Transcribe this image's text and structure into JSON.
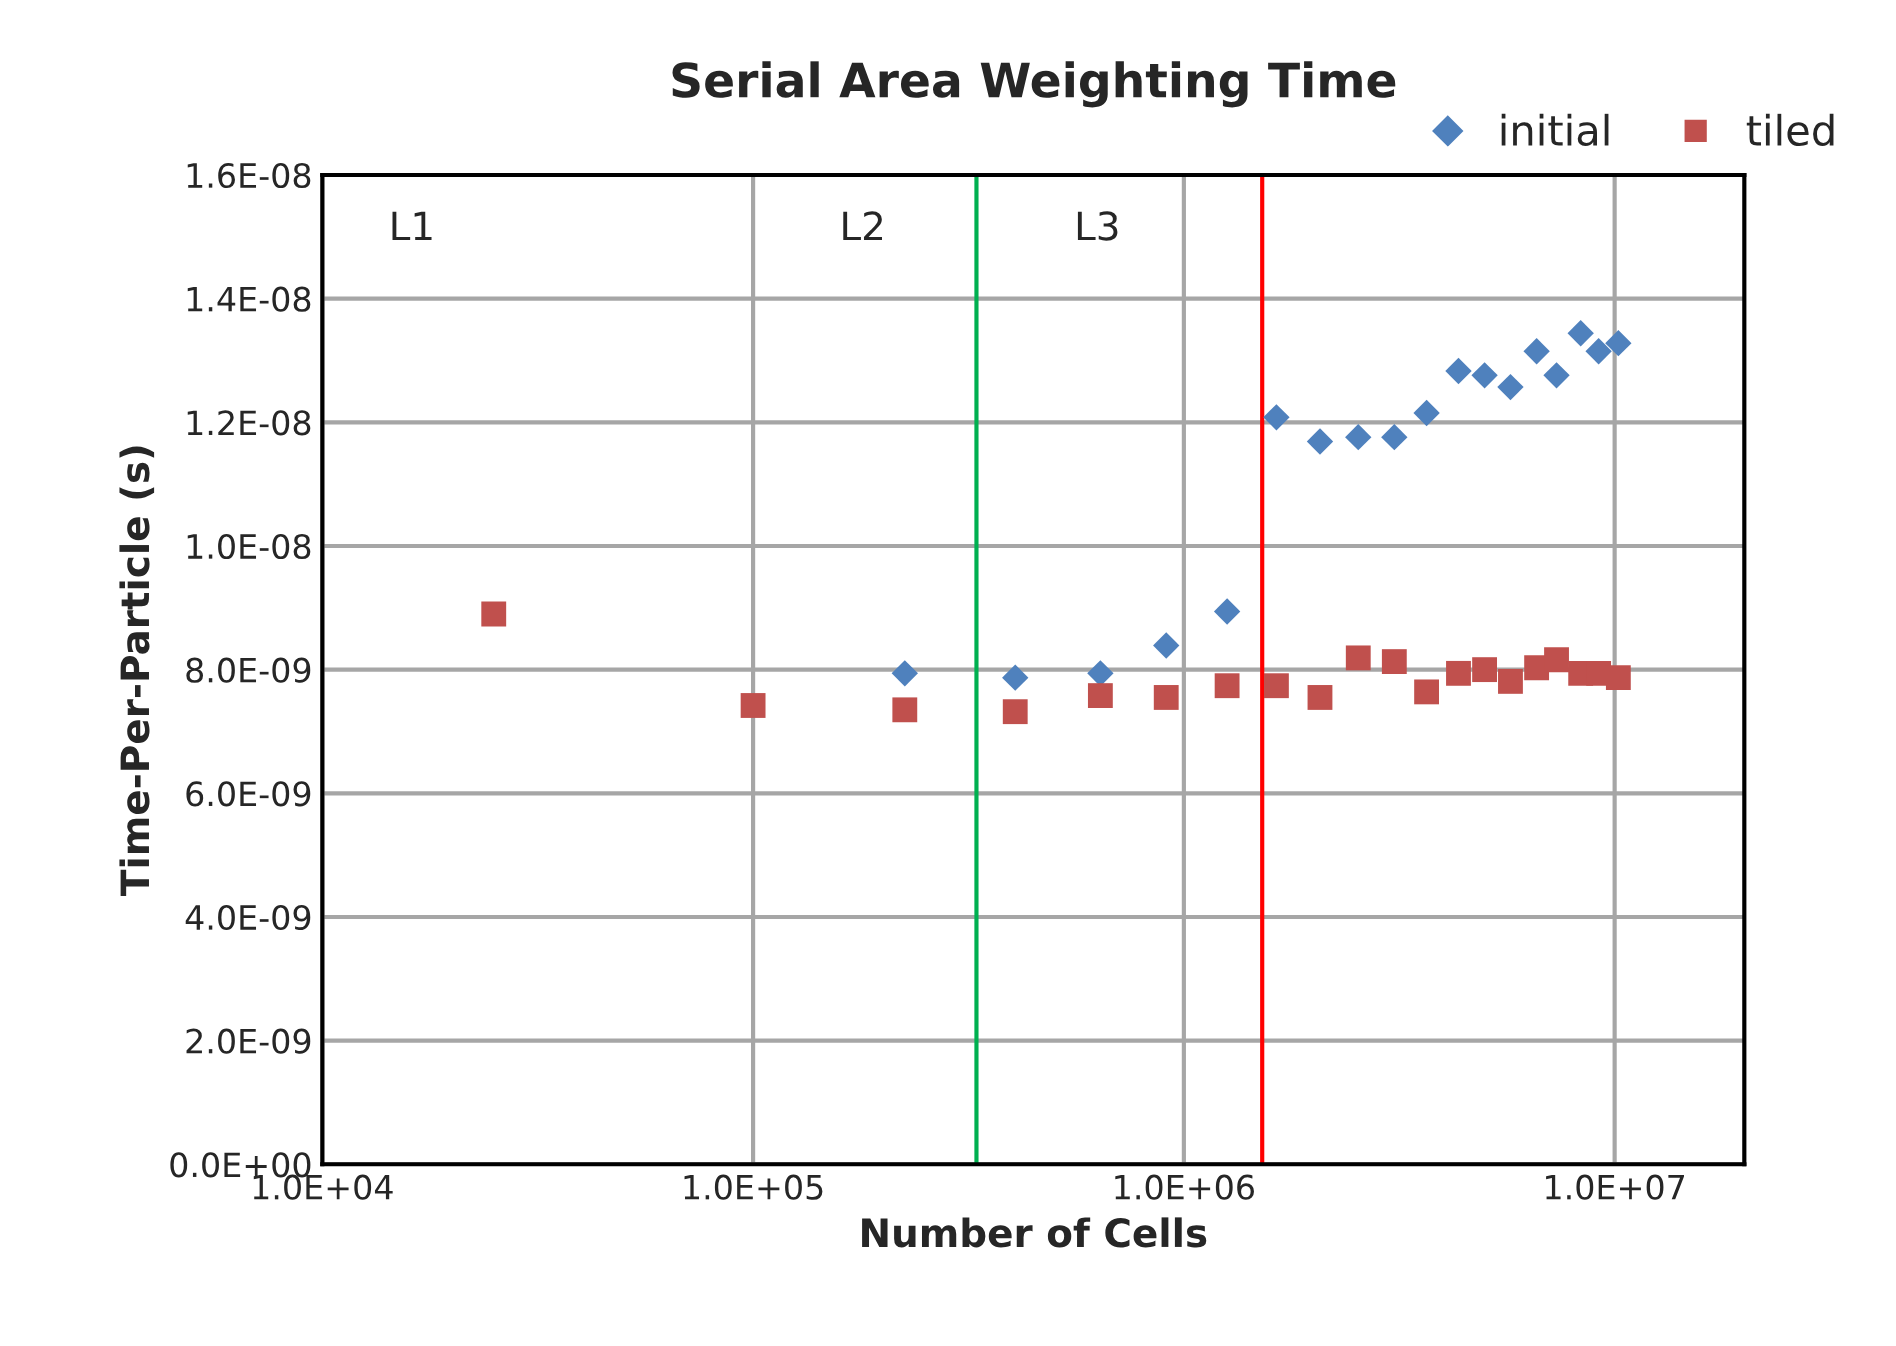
{
  "chart_data": {
    "type": "scatter",
    "title": "Serial Area Weighting Time",
    "xlabel": "Number of Cells",
    "ylabel": "Time-Per-Particle (s)",
    "log": "x",
    "xlim": [
      10000,
      20000000
    ],
    "ylim": [
      0,
      1.6e-08
    ],
    "xticks": [
      {
        "value": 10000,
        "label": "1.0E+04"
      },
      {
        "value": 100000,
        "label": "1.0E+05"
      },
      {
        "value": 1000000,
        "label": "1.0E+06"
      },
      {
        "value": 10000000,
        "label": "1.0E+07"
      }
    ],
    "yticks": [
      {
        "value": 0,
        "label": "0.0E+00"
      },
      {
        "value": 2e-09,
        "label": "2.0E-09"
      },
      {
        "value": 4e-09,
        "label": "4.0E-09"
      },
      {
        "value": 6e-09,
        "label": "6.0E-09"
      },
      {
        "value": 8e-09,
        "label": "8.0E-09"
      },
      {
        "value": 1e-08,
        "label": "1.0E-08"
      },
      {
        "value": 1.2e-08,
        "label": "1.2E-08"
      },
      {
        "value": 1.4e-08,
        "label": "1.4E-08"
      },
      {
        "value": 1.6e-08,
        "label": "1.6E-08"
      }
    ],
    "grid": true,
    "legend": "top right",
    "series": [
      {
        "name": "initial",
        "color": "#4f81bd",
        "marker": "diamond",
        "x": [
          225000,
          406000,
          640000,
          910000,
          1260000,
          1640000,
          2070000,
          2540000,
          3080000,
          3660000,
          4340000,
          4990000,
          5730000,
          6590000,
          7330000,
          8340000,
          9180000,
          10200000
        ],
        "values": [
          7.94e-09,
          7.87e-09,
          7.94e-09,
          8.39e-09,
          8.94e-09,
          1.208e-08,
          1.169e-08,
          1.176e-08,
          1.176e-08,
          1.215e-08,
          1.283e-08,
          1.276e-08,
          1.257e-08,
          1.315e-08,
          1.276e-08,
          1.344e-08,
          1.315e-08,
          1.328e-08
        ]
      },
      {
        "name": "tiled",
        "color": "#c0504d",
        "marker": "square",
        "x": [
          25000,
          100000,
          225000,
          406000,
          640000,
          910000,
          1260000,
          1640000,
          2070000,
          2540000,
          3080000,
          3660000,
          4340000,
          4990000,
          5730000,
          6590000,
          7330000,
          8340000,
          9180000,
          10200000
        ],
        "values": [
          8.9e-09,
          7.42e-09,
          7.35e-09,
          7.32e-09,
          7.58e-09,
          7.55e-09,
          7.74e-09,
          7.74e-09,
          7.55e-09,
          8.19e-09,
          8.13e-09,
          7.64e-09,
          7.94e-09,
          8e-09,
          7.81e-09,
          8.03e-09,
          8.16e-09,
          7.94e-09,
          7.94e-09,
          7.87e-09
        ]
      }
    ],
    "ref_lines": [
      {
        "axis": "x",
        "value": 330000,
        "color": "#00b050"
      },
      {
        "axis": "x",
        "value": 1520000,
        "color": "#ff0000"
      }
    ],
    "annotations": [
      "L1",
      "L2",
      "L3"
    ]
  }
}
